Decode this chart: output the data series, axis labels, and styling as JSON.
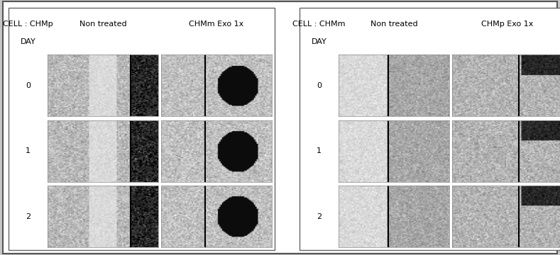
{
  "background_color": "#f0f0f0",
  "border_color": "#333333",
  "fig_bg": "#d8d8d8",
  "panel_bg": "#ffffff",
  "left_panel": {
    "header_line1": "CELL : CHMp",
    "header_line2": "DAY",
    "col1_label": "Non treated",
    "col2_label": "CHMm Exo 1x",
    "day_labels": [
      "0",
      "1",
      "2"
    ]
  },
  "right_panel": {
    "header_line1": "CELL : CHMm",
    "header_line2": "DAY",
    "col1_label": "Non treated",
    "col2_label": "CHMp Exo 1x",
    "day_labels": [
      "0",
      "1",
      "2"
    ]
  },
  "font_size_header": 9,
  "font_size_col": 9,
  "font_size_day": 9
}
